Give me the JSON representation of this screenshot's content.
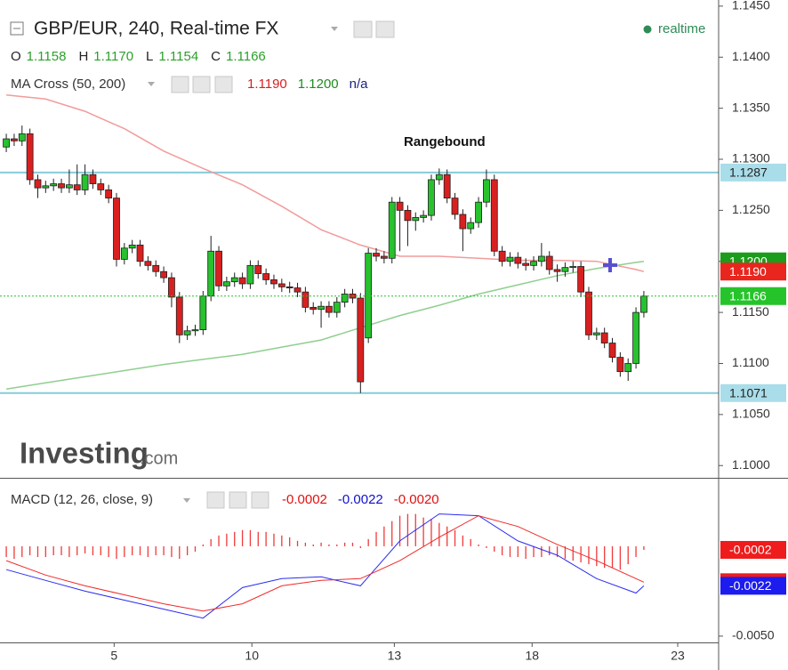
{
  "header": {
    "title": "GBP/EUR, 240, Real-time FX",
    "status": "realtime",
    "status_color": "#2e8b57",
    "ohlc_labels": [
      "O",
      "H",
      "L",
      "C"
    ],
    "ohlc_values": [
      "1.1158",
      "1.1170",
      "1.1154",
      "1.1166"
    ],
    "ohlc_value_color": "#2ca02c"
  },
  "watermark": {
    "brand": "Investing",
    "suffix": ".com"
  },
  "chart_data": [
    {
      "type": "candlestick",
      "legend": "MA Cross (50, 200)",
      "legend_values": [
        {
          "text": "1.1190",
          "color": "#d62020"
        },
        {
          "text": "1.1200",
          "color": "#1e8c1e"
        },
        {
          "text": "n/a",
          "color": "#1a237e"
        }
      ],
      "annotation": "Rangebound",
      "up_color": "#27c22e",
      "down_color": "#d92020",
      "outline_color": "#1f1f1f",
      "ylim": [
        1.0988,
        1.1456
      ],
      "yticks": [
        {
          "value": 1.1,
          "label": "1.1000"
        },
        {
          "value": 1.105,
          "label": "1.1050"
        },
        {
          "value": 1.11,
          "label": "1.1100"
        },
        {
          "value": 1.115,
          "label": "1.1150"
        },
        {
          "value": 1.12,
          "label": "1.1200"
        },
        {
          "value": 1.125,
          "label": "1.1250"
        },
        {
          "value": 1.13,
          "label": "1.1300"
        },
        {
          "value": 1.135,
          "label": "1.1350"
        },
        {
          "value": 1.14,
          "label": "1.1400"
        },
        {
          "value": 1.145,
          "label": "1.1450"
        }
      ],
      "open": [
        1.1312,
        1.132,
        1.1318,
        1.1325,
        1.128,
        1.1272,
        1.1274,
        1.1276,
        1.1272,
        1.1275,
        1.127,
        1.1285,
        1.1276,
        1.127,
        1.1262,
        1.1202,
        1.1213,
        1.1216,
        1.12,
        1.1196,
        1.119,
        1.1184,
        1.1165,
        1.1128,
        1.1132,
        1.1133,
        1.1166,
        1.121,
        1.1176,
        1.118,
        1.1184,
        1.1178,
        1.1196,
        1.1188,
        1.1182,
        1.1178,
        1.1175,
        1.1174,
        1.117,
        1.1155,
        1.1153,
        1.1156,
        1.115,
        1.116,
        1.1168,
        1.1164,
        1.1125,
        1.1208,
        1.1205,
        1.1203,
        1.1258,
        1.125,
        1.124,
        1.1243,
        1.1245,
        1.128,
        1.1285,
        1.1262,
        1.1246,
        1.1232,
        1.1238,
        1.1258,
        1.128,
        1.121,
        1.12,
        1.1204,
        1.1198,
        1.1196,
        1.12,
        1.1205,
        1.1192,
        1.119,
        1.1194,
        1.1195,
        1.117,
        1.1128,
        1.113,
        1.112,
        1.1106,
        1.1092,
        1.11,
        1.115
      ],
      "high": [
        1.1325,
        1.1325,
        1.1333,
        1.133,
        1.1285,
        1.1279,
        1.1281,
        1.1281,
        1.129,
        1.1295,
        1.1295,
        1.129,
        1.1281,
        1.1275,
        1.1267,
        1.1218,
        1.1221,
        1.1221,
        1.1205,
        1.1201,
        1.1195,
        1.1189,
        1.117,
        1.1137,
        1.1138,
        1.1171,
        1.1225,
        1.1215,
        1.1185,
        1.1189,
        1.1189,
        1.1201,
        1.1201,
        1.1193,
        1.1187,
        1.1183,
        1.118,
        1.1179,
        1.1175,
        1.116,
        1.1161,
        1.1161,
        1.1165,
        1.1173,
        1.1173,
        1.1169,
        1.1213,
        1.1213,
        1.121,
        1.1263,
        1.1263,
        1.1255,
        1.1248,
        1.125,
        1.1285,
        1.1291,
        1.129,
        1.1267,
        1.1251,
        1.1243,
        1.1263,
        1.129,
        1.1285,
        1.1215,
        1.1209,
        1.1209,
        1.1203,
        1.1205,
        1.1218,
        1.121,
        1.1197,
        1.1199,
        1.12,
        1.12,
        1.1175,
        1.1135,
        1.1135,
        1.1125,
        1.1111,
        1.1105,
        1.1155,
        1.1171
      ],
      "low": [
        1.1307,
        1.1313,
        1.1313,
        1.1275,
        1.1262,
        1.1267,
        1.1269,
        1.1267,
        1.1267,
        1.1265,
        1.1265,
        1.1271,
        1.1265,
        1.1257,
        1.1195,
        1.1197,
        1.1208,
        1.1195,
        1.1191,
        1.1185,
        1.1179,
        1.1155,
        1.112,
        1.1123,
        1.1127,
        1.1128,
        1.1161,
        1.1171,
        1.1171,
        1.1175,
        1.1173,
        1.1173,
        1.1183,
        1.1177,
        1.1173,
        1.117,
        1.1169,
        1.1165,
        1.115,
        1.1148,
        1.1135,
        1.1145,
        1.1145,
        1.1155,
        1.1159,
        1.1071,
        1.112,
        1.12,
        1.1198,
        1.1198,
        1.121,
        1.1215,
        1.123,
        1.1238,
        1.124,
        1.1275,
        1.1257,
        1.1241,
        1.121,
        1.1227,
        1.1233,
        1.1253,
        1.1205,
        1.1195,
        1.1195,
        1.1193,
        1.1191,
        1.1191,
        1.1195,
        1.1187,
        1.118,
        1.1185,
        1.1189,
        1.1165,
        1.1123,
        1.1123,
        1.1115,
        1.1101,
        1.1087,
        1.1083,
        1.1095,
        1.1145
      ],
      "close": [
        1.132,
        1.1318,
        1.1325,
        1.128,
        1.1272,
        1.1274,
        1.1276,
        1.1272,
        1.1275,
        1.127,
        1.1285,
        1.1276,
        1.127,
        1.1262,
        1.1202,
        1.1213,
        1.1216,
        1.12,
        1.1196,
        1.119,
        1.1184,
        1.1165,
        1.1128,
        1.1132,
        1.1133,
        1.1166,
        1.121,
        1.1176,
        1.118,
        1.1184,
        1.1178,
        1.1196,
        1.1188,
        1.1182,
        1.1178,
        1.1175,
        1.1174,
        1.117,
        1.1155,
        1.1153,
        1.1156,
        1.115,
        1.116,
        1.1168,
        1.1164,
        1.1082,
        1.1208,
        1.1205,
        1.1203,
        1.1258,
        1.125,
        1.124,
        1.1243,
        1.1245,
        1.128,
        1.1285,
        1.1262,
        1.1246,
        1.1232,
        1.1238,
        1.1258,
        1.128,
        1.121,
        1.12,
        1.1204,
        1.1198,
        1.1196,
        1.12,
        1.1205,
        1.1192,
        1.119,
        1.1194,
        1.1195,
        1.117,
        1.1128,
        1.113,
        1.112,
        1.1106,
        1.1092,
        1.11,
        1.115,
        1.1166
      ],
      "overlays": [
        {
          "color": "#f29b9b",
          "x": [
            0,
            5,
            10,
            15,
            20,
            25,
            30,
            35,
            40,
            45,
            50,
            55,
            60,
            65,
            70,
            75,
            80,
            81
          ],
          "values": [
            1.1363,
            1.1359,
            1.1347,
            1.133,
            1.1308,
            1.1291,
            1.1275,
            1.1254,
            1.1231,
            1.1216,
            1.1205,
            1.1205,
            1.1203,
            1.1201,
            1.1201,
            1.12,
            1.1192,
            1.119
          ]
        },
        {
          "color": "#8fcf8f",
          "x": [
            0,
            5,
            10,
            15,
            20,
            25,
            30,
            35,
            40,
            45,
            50,
            55,
            60,
            65,
            70,
            75,
            80,
            81
          ],
          "values": [
            1.1075,
            1.1081,
            1.1087,
            1.1093,
            1.1099,
            1.1104,
            1.1109,
            1.1116,
            1.1123,
            1.1135,
            1.1147,
            1.1157,
            1.1168,
            1.1177,
            1.1186,
            1.1193,
            1.1199,
            1.12
          ]
        }
      ],
      "hlines": [
        {
          "value": 1.1287,
          "label": "1.1287"
        },
        {
          "value": 1.1071,
          "label": "1.1071"
        }
      ],
      "hline_color": "#86cbd9",
      "hline_label_color": "#a9dde9",
      "price_labels": [
        {
          "value": 1.12,
          "label": "1.1200",
          "color": "#1c9c1c"
        },
        {
          "value": 1.119,
          "label": "1.1190",
          "color": "#e8261e"
        },
        {
          "value": 1.1166,
          "label": "1.1166",
          "color": "#25c42a",
          "dotted": true
        }
      ]
    },
    {
      "type": "macd",
      "legend": "MACD (12, 26, close, 9)",
      "legend_values": [
        {
          "text": "-0.0002",
          "color": "#e01010"
        },
        {
          "text": "-0.0022",
          "color": "#1010d0"
        },
        {
          "text": "-0.0020",
          "color": "#e01010"
        }
      ],
      "xlim": [
        -0.8,
        90.5
      ],
      "xticks": [
        {
          "value": 13.7,
          "label": "5"
        },
        {
          "value": 31.2,
          "label": "10"
        },
        {
          "value": 49.3,
          "label": "13"
        },
        {
          "value": 66.8,
          "label": "18"
        },
        {
          "value": 85.3,
          "label": "23"
        }
      ],
      "ylim": [
        -0.00535,
        0.00376
      ],
      "yticks": [
        {
          "value": -0.005,
          "label": "-0.0050"
        }
      ],
      "histogram": {
        "color": "#f03a3a",
        "values": [
          -0.0006,
          -0.0007,
          -0.0006,
          -0.0005,
          -0.0006,
          -0.0006,
          -0.0005,
          -0.0005,
          -0.0006,
          -0.0005,
          -0.0004,
          -0.0005,
          -0.0005,
          -0.0006,
          -0.0007,
          -0.0006,
          -0.0005,
          -0.0005,
          -0.0006,
          -0.0005,
          -0.0005,
          -0.0006,
          -0.0007,
          -0.0005,
          -0.0003,
          0.0001,
          0.0004,
          0.0006,
          0.0007,
          0.0008,
          0.0009,
          0.0009,
          0.0008,
          0.0008,
          0.0007,
          0.0006,
          0.0005,
          0.0003,
          0.0002,
          0.0001,
          0.0002,
          0.0001,
          0.0001,
          0.0002,
          0.0002,
          -0.0001,
          0.0004,
          0.0008,
          0.0011,
          0.0014,
          0.0017,
          0.0018,
          0.0018,
          0.0016,
          0.0015,
          0.0013,
          0.0011,
          0.0009,
          0.0006,
          0.0004,
          0.0001,
          -0.0001,
          -0.0003,
          -0.0005,
          -0.0006,
          -0.0006,
          -0.0007,
          -0.0006,
          -0.0006,
          -0.0005,
          -0.0006,
          -0.0007,
          -0.0008,
          -0.0009,
          -0.001,
          -0.0011,
          -0.0012,
          -0.0012,
          -0.0013,
          -0.001,
          -0.0006,
          -0.0002
        ]
      },
      "series": [
        {
          "color": "#2b2bf0",
          "x": [
            0,
            5,
            10,
            15,
            20,
            25,
            30,
            35,
            40,
            45,
            50,
            55,
            60,
            65,
            70,
            75,
            80,
            81
          ],
          "values": [
            -0.0013,
            -0.0019,
            -0.0025,
            -0.003,
            -0.0035,
            -0.004,
            -0.0023,
            -0.0018,
            -0.0017,
            -0.0022,
            0.0003,
            0.0018,
            0.0017,
            0.0003,
            -0.0005,
            -0.0018,
            -0.0026,
            -0.0022
          ]
        },
        {
          "color": "#f02a2a",
          "x": [
            0,
            5,
            10,
            15,
            20,
            25,
            30,
            35,
            40,
            45,
            50,
            55,
            60,
            65,
            70,
            75,
            80,
            81
          ],
          "values": [
            -0.0008,
            -0.0016,
            -0.0022,
            -0.0027,
            -0.0032,
            -0.0036,
            -0.0032,
            -0.0022,
            -0.0019,
            -0.0018,
            -0.0008,
            0.0005,
            0.0017,
            0.0011,
            0.0001,
            -0.0008,
            -0.0018,
            -0.002
          ]
        }
      ],
      "price_labels": [
        {
          "value": -0.0002,
          "label": "-0.0002",
          "color": "#ee1c1c"
        },
        {
          "value": -0.002,
          "label": "-0.0020",
          "color": "#ee1c1c"
        },
        {
          "value": -0.0022,
          "label": "-0.0022",
          "color": "#1c1cee"
        }
      ]
    }
  ]
}
